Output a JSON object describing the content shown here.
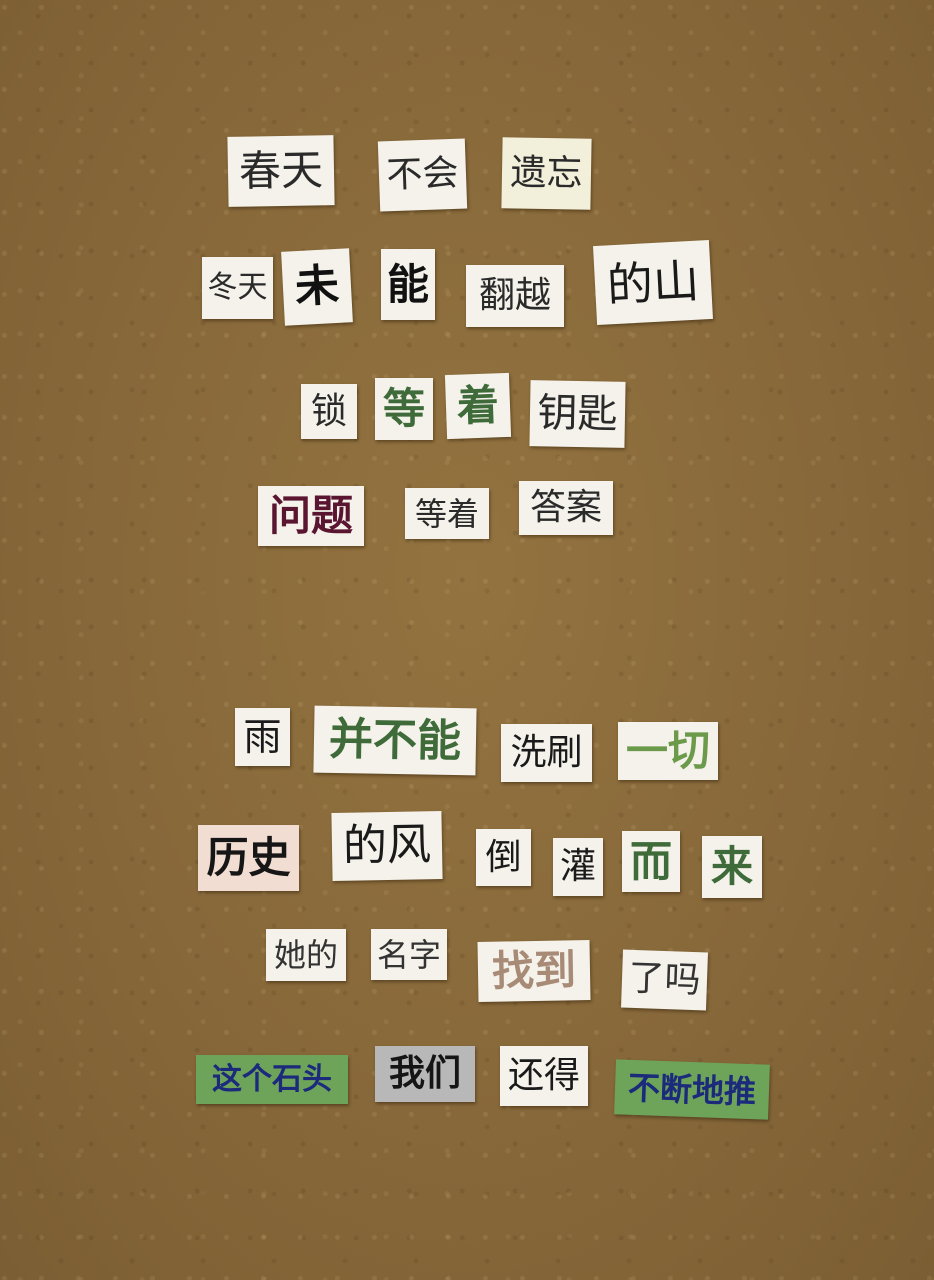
{
  "clippings": [
    {
      "text": "春天",
      "color": "#2a2a2a",
      "bg": "#f4f2ea"
    },
    {
      "text": "不会",
      "color": "#2a2a2a",
      "bg": "#f4f2ea"
    },
    {
      "text": "遗忘",
      "color": "#2a2a2a",
      "bg": "#f2efda"
    },
    {
      "text": "冬天",
      "color": "#2a2a2a",
      "bg": "#f4f2ea"
    },
    {
      "text": "未",
      "color": "#111111",
      "bg": "#f4f2ea"
    },
    {
      "text": "能",
      "color": "#111111",
      "bg": "#f4f2ea"
    },
    {
      "text": "翻越",
      "color": "#2a2a2a",
      "bg": "#f4f2ea"
    },
    {
      "text": "的山",
      "color": "#1a1a1a",
      "bg": "#f4f2ea"
    },
    {
      "text": "锁",
      "color": "#2a2a2a",
      "bg": "#f4f2ea"
    },
    {
      "text": "等",
      "color": "#3f6b3a",
      "bg": "#f4f2ea"
    },
    {
      "text": "着",
      "color": "#3f6b3a",
      "bg": "#f4f2ea"
    },
    {
      "text": "钥匙",
      "color": "#2a2a2a",
      "bg": "#f4f2ea"
    },
    {
      "text": "问题",
      "color": "#5a1530",
      "bg": "#f4f2ea"
    },
    {
      "text": "等着",
      "color": "#2a2a2a",
      "bg": "#f4f2ea"
    },
    {
      "text": "答案",
      "color": "#2a2a2a",
      "bg": "#f4f2ea"
    },
    {
      "text": "雨",
      "color": "#1a1a1a",
      "bg": "#f4f2ea"
    },
    {
      "text": "并不能",
      "color": "#3f6b3a",
      "bg": "#f4f2ea"
    },
    {
      "text": "洗刷",
      "color": "#1a1a1a",
      "bg": "#f4f2ea"
    },
    {
      "text": "一切",
      "color": "#6a9a4a",
      "bg": "#f4f2ea"
    },
    {
      "text": "历史",
      "color": "#161616",
      "bg": "#f2ddd3"
    },
    {
      "text": "的风",
      "color": "#1a1a1a",
      "bg": "#f4f2ea"
    },
    {
      "text": "倒",
      "color": "#1a1a1a",
      "bg": "#f4f2ea"
    },
    {
      "text": "灌",
      "color": "#1a1a1a",
      "bg": "#f4f2ea"
    },
    {
      "text": "而",
      "color": "#3f6b3a",
      "bg": "#f4f2ea"
    },
    {
      "text": "来",
      "color": "#3f6b3a",
      "bg": "#f4f2ea"
    },
    {
      "text": "她的",
      "color": "#333333",
      "bg": "#f4f2ea"
    },
    {
      "text": "名字",
      "color": "#333333",
      "bg": "#f4f2ea"
    },
    {
      "text": "找到",
      "color": "#a88b76",
      "bg": "#f4f2ea"
    },
    {
      "text": "了吗",
      "color": "#333333",
      "bg": "#f4f2ea"
    },
    {
      "text": "这个石头",
      "color": "#1b2a7a",
      "bg": "#6ea35a"
    },
    {
      "text": "我们",
      "color": "#151515",
      "bg": "#b8b8b8"
    },
    {
      "text": "还得",
      "color": "#1a1a1a",
      "bg": "#f4f2ea"
    },
    {
      "text": "不断地推",
      "color": "#1b2a7a",
      "bg": "#6ea35a"
    }
  ]
}
